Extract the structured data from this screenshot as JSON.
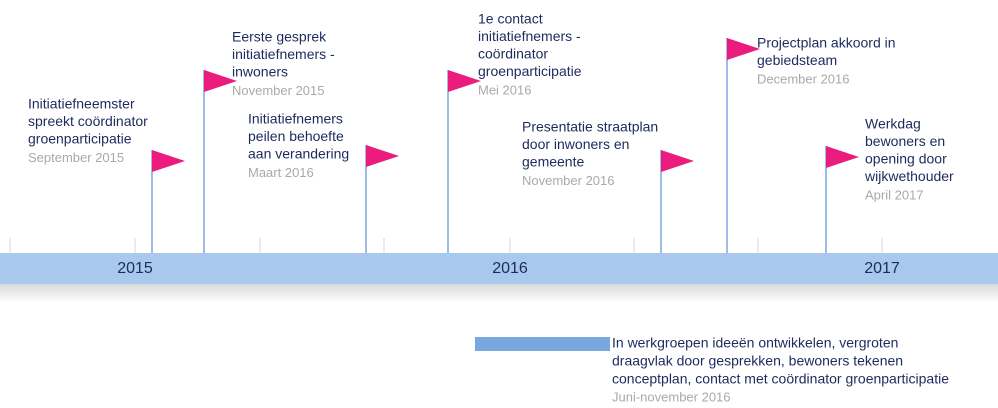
{
  "years": [
    "2015",
    "2016",
    "2017"
  ],
  "events": [
    {
      "lines": [
        "Initiatiefneemster",
        "spreekt coördinator",
        "groenparticipatie"
      ],
      "date": "September 2015"
    },
    {
      "lines": [
        "Eerste gesprek",
        "initiatiefnemers -",
        "inwoners"
      ],
      "date": "November 2015"
    },
    {
      "lines": [
        "Initiatiefnemers",
        "peilen behoefte",
        "aan verandering"
      ],
      "date": "Maart 2016"
    },
    {
      "lines": [
        "1e contact",
        "initiatiefnemers -",
        "coördinator",
        "groenparticipatie"
      ],
      "date": "Mei 2016"
    },
    {
      "lines": [
        "Presentatie straatplan",
        "door inwoners en",
        "gemeente"
      ],
      "date": "November 2016"
    },
    {
      "lines": [
        "Projectplan akkoord in",
        "gebiedsteam"
      ],
      "date": "December 2016"
    },
    {
      "lines": [
        "Werkdag",
        "bewoners en",
        "opening door",
        "wijkwethouder"
      ],
      "date": "April 2017"
    }
  ],
  "period": {
    "lines": [
      "In werkgroepen ideeën ontwikkelen, vergroten",
      "draagvlak door gesprekken, bewoners tekenen",
      "conceptplan, contact met coördinator groenparticipatie"
    ],
    "date": "Juni-november 2016"
  }
}
